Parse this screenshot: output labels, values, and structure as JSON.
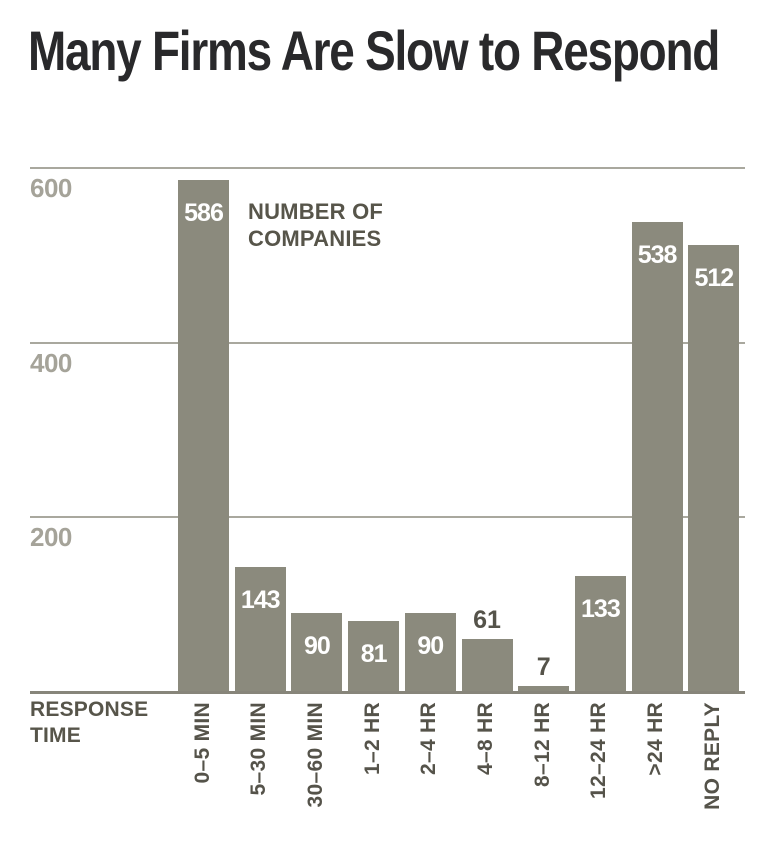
{
  "chart_data": {
    "type": "bar",
    "title": "Many Firms Are Slow to Respond",
    "categories": [
      "0–5 MIN",
      "5–30 MIN",
      "30–60 MIN",
      "1–2 HR",
      "2–4 HR",
      "4–8 HR",
      "8–12 HR",
      "12–24 HR",
      ">24 HR",
      "NO REPLY"
    ],
    "values": [
      586,
      143,
      90,
      81,
      90,
      61,
      7,
      133,
      538,
      512
    ],
    "value_note": "NUMBER OF COMPANIES",
    "xlabel": "RESPONSE TIME",
    "ylabel": "",
    "yticks": [
      600,
      400,
      200
    ],
    "ylim": [
      0,
      600
    ],
    "legend": "none",
    "grid": "horizontal gridlines at 200, 400, 600; dark baseline at 0",
    "bar_value_labels": "inside top of bar in white; above bar in dark when bar too short (value 7)",
    "x_tick_label_style": "rotated 90° counterclockwise, reading bottom to top, aligned at axis"
  },
  "colors": {
    "background": "#ffffff",
    "bar_fill": "#8b8a7d",
    "bar_value_text": "#ffffff",
    "title_text": "#29292b",
    "axis_text_dark": "#57554a",
    "ytick_text": "#a5a399",
    "gridline": "#a9a89e",
    "baseline": "#87857a"
  }
}
